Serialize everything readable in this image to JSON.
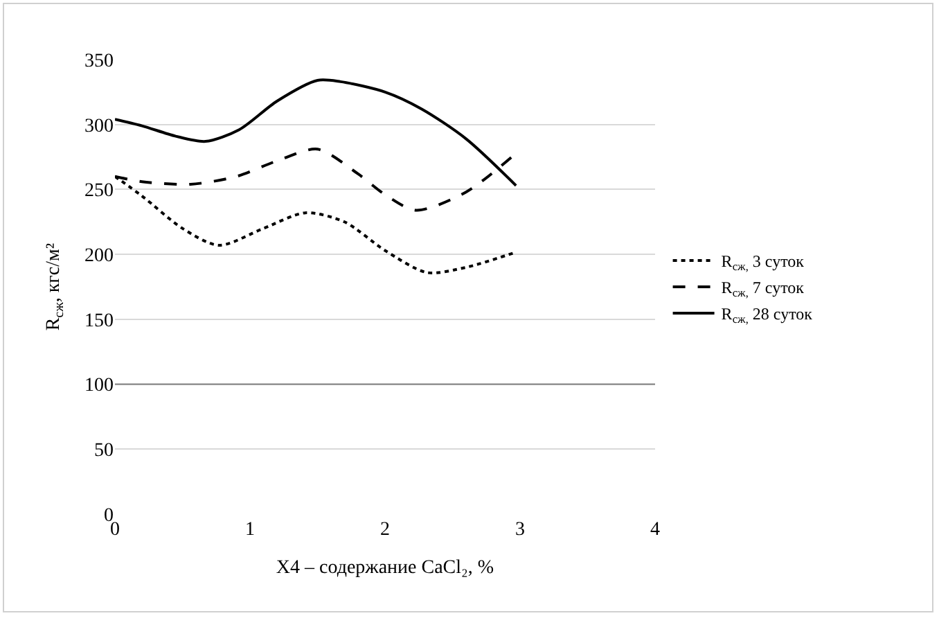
{
  "chart_data": {
    "type": "line",
    "xlabel": "X4 – содержание CaCl₂, %",
    "ylabel": "R$_{сж}$, кгс/м²",
    "xlim": [
      0,
      4
    ],
    "xticks": [
      0,
      1,
      2,
      3,
      4
    ],
    "ylim": [
      0,
      350
    ],
    "yticks": [
      0,
      50,
      100,
      150,
      200,
      250,
      300,
      350
    ],
    "grid": "y",
    "legend": "right",
    "marker": "none",
    "ref_lines": [
      {
        "axis": "y",
        "value": 100,
        "label": null,
        "color": "#808080"
      }
    ],
    "series": [
      {
        "name": "R$_{сж,}$ 3 суток",
        "color": "#000000",
        "line_style": "dotted",
        "x": [
          0,
          0.2,
          0.5,
          0.77,
          1.1,
          1.41,
          1.7,
          2.0,
          2.31,
          2.6,
          2.95
        ],
        "values": [
          260,
          245,
          220,
          207,
          220,
          232,
          225,
          203,
          186,
          190,
          201
        ]
      },
      {
        "name": "R$_{сж,}$ 7 суток",
        "color": "#000000",
        "line_style": "dashed",
        "x": [
          0,
          0.2,
          0.56,
          0.9,
          1.2,
          1.5,
          1.8,
          2.0,
          2.23,
          2.6,
          2.95
        ],
        "values": [
          260,
          256,
          254,
          260,
          272,
          281,
          262,
          246,
          234,
          248,
          276
        ]
      },
      {
        "name": "R$_{сж,}$ 28 суток",
        "color": "#000000",
        "line_style": "solid",
        "x": [
          0,
          0.2,
          0.45,
          0.67,
          0.92,
          1.2,
          1.5,
          1.67,
          2.0,
          2.27,
          2.6,
          2.97
        ],
        "values": [
          304,
          299,
          291,
          287,
          296,
          318,
          334,
          333,
          325,
          312,
          289,
          253
        ]
      }
    ]
  }
}
